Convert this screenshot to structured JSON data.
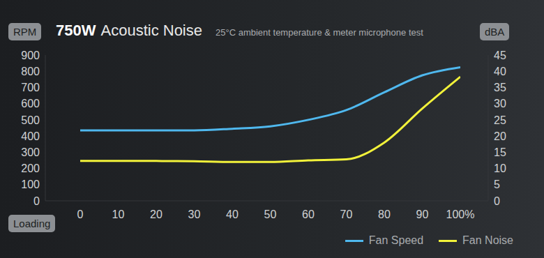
{
  "chart_data": {
    "type": "line",
    "title": "750W Acoustic Noise",
    "subtitle": "25°C ambient temperature & meter microphone test",
    "x_label": "Loading",
    "y_label": "RPM",
    "y2_label": "dBA",
    "x": [
      0,
      10,
      20,
      30,
      40,
      50,
      60,
      70,
      80,
      90,
      100
    ],
    "series": [
      {
        "name": "Fan Speed",
        "color": "#4fb8ee",
        "values": [
          435,
          435,
          435,
          435,
          445,
          460,
          500,
          560,
          670,
          775,
          825
        ]
      },
      {
        "name": "Fan Noise",
        "color": "#f2f23a",
        "axis": "y2",
        "values": [
          12.3,
          12.3,
          12.3,
          12.2,
          12,
          12,
          12.5,
          12.8,
          18,
          28.5,
          38.3
        ]
      }
    ],
    "xlim": [
      0,
      100
    ],
    "xticks": [
      0,
      10,
      20,
      30,
      40,
      50,
      60,
      70,
      80,
      90,
      {
        "value": 100,
        "label": "100%"
      }
    ],
    "ylim": [
      0,
      900
    ],
    "yticks": [
      0,
      100,
      200,
      300,
      400,
      500,
      600,
      700,
      800,
      900
    ],
    "y2lim": [
      0,
      45
    ],
    "y2ticks": [
      0,
      5,
      10,
      15,
      20,
      25,
      30,
      35,
      40,
      45
    ],
    "grid": false,
    "legend": "lower right"
  }
}
